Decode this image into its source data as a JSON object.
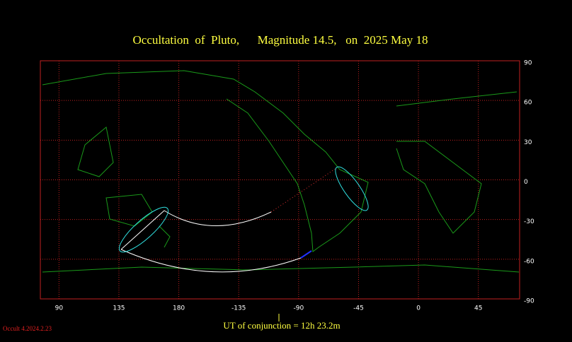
{
  "chart_data": {
    "type": "map",
    "title": "Occultation  of  Pluto,      Magnitude 14.5,   on  2025 May 18",
    "xticks": [
      90,
      135,
      180,
      -135,
      -90,
      -45,
      0,
      45
    ],
    "yticks": [
      90,
      60,
      30,
      0,
      -30,
      -60,
      -90
    ],
    "footer": "UT of conjunction = 12h 23.2m",
    "version": "Occult 4.2024.2.23"
  }
}
